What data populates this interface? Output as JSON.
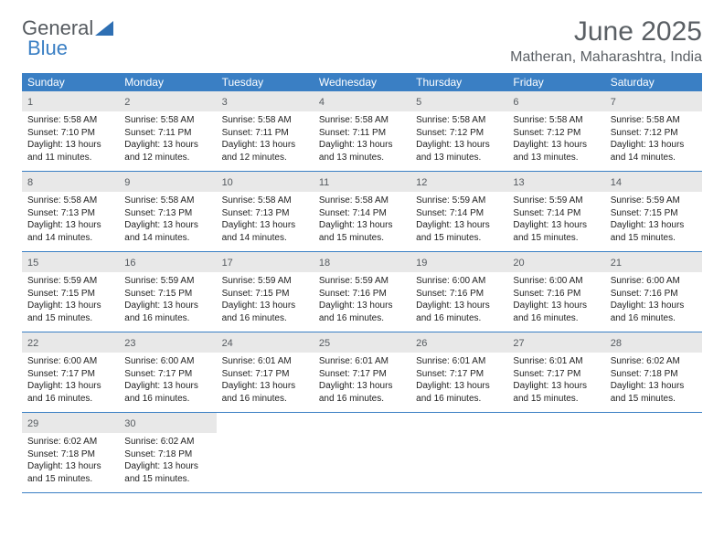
{
  "logo": {
    "part1": "General",
    "part2": "Blue"
  },
  "title": "June 2025",
  "subtitle": "Matheran, Maharashtra, India",
  "colors": {
    "header_bg": "#3a7fc4",
    "header_fg": "#ffffff",
    "daynum_bg": "#e8e8e8",
    "text": "#222222",
    "muted": "#5a5f64",
    "rule": "#3a7fc4"
  },
  "weekdays": [
    "Sunday",
    "Monday",
    "Tuesday",
    "Wednesday",
    "Thursday",
    "Friday",
    "Saturday"
  ],
  "weeks": [
    [
      {
        "n": "1",
        "sr": "Sunrise: 5:58 AM",
        "ss": "Sunset: 7:10 PM",
        "d1": "Daylight: 13 hours",
        "d2": "and 11 minutes."
      },
      {
        "n": "2",
        "sr": "Sunrise: 5:58 AM",
        "ss": "Sunset: 7:11 PM",
        "d1": "Daylight: 13 hours",
        "d2": "and 12 minutes."
      },
      {
        "n": "3",
        "sr": "Sunrise: 5:58 AM",
        "ss": "Sunset: 7:11 PM",
        "d1": "Daylight: 13 hours",
        "d2": "and 12 minutes."
      },
      {
        "n": "4",
        "sr": "Sunrise: 5:58 AM",
        "ss": "Sunset: 7:11 PM",
        "d1": "Daylight: 13 hours",
        "d2": "and 13 minutes."
      },
      {
        "n": "5",
        "sr": "Sunrise: 5:58 AM",
        "ss": "Sunset: 7:12 PM",
        "d1": "Daylight: 13 hours",
        "d2": "and 13 minutes."
      },
      {
        "n": "6",
        "sr": "Sunrise: 5:58 AM",
        "ss": "Sunset: 7:12 PM",
        "d1": "Daylight: 13 hours",
        "d2": "and 13 minutes."
      },
      {
        "n": "7",
        "sr": "Sunrise: 5:58 AM",
        "ss": "Sunset: 7:12 PM",
        "d1": "Daylight: 13 hours",
        "d2": "and 14 minutes."
      }
    ],
    [
      {
        "n": "8",
        "sr": "Sunrise: 5:58 AM",
        "ss": "Sunset: 7:13 PM",
        "d1": "Daylight: 13 hours",
        "d2": "and 14 minutes."
      },
      {
        "n": "9",
        "sr": "Sunrise: 5:58 AM",
        "ss": "Sunset: 7:13 PM",
        "d1": "Daylight: 13 hours",
        "d2": "and 14 minutes."
      },
      {
        "n": "10",
        "sr": "Sunrise: 5:58 AM",
        "ss": "Sunset: 7:13 PM",
        "d1": "Daylight: 13 hours",
        "d2": "and 14 minutes."
      },
      {
        "n": "11",
        "sr": "Sunrise: 5:58 AM",
        "ss": "Sunset: 7:14 PM",
        "d1": "Daylight: 13 hours",
        "d2": "and 15 minutes."
      },
      {
        "n": "12",
        "sr": "Sunrise: 5:59 AM",
        "ss": "Sunset: 7:14 PM",
        "d1": "Daylight: 13 hours",
        "d2": "and 15 minutes."
      },
      {
        "n": "13",
        "sr": "Sunrise: 5:59 AM",
        "ss": "Sunset: 7:14 PM",
        "d1": "Daylight: 13 hours",
        "d2": "and 15 minutes."
      },
      {
        "n": "14",
        "sr": "Sunrise: 5:59 AM",
        "ss": "Sunset: 7:15 PM",
        "d1": "Daylight: 13 hours",
        "d2": "and 15 minutes."
      }
    ],
    [
      {
        "n": "15",
        "sr": "Sunrise: 5:59 AM",
        "ss": "Sunset: 7:15 PM",
        "d1": "Daylight: 13 hours",
        "d2": "and 15 minutes."
      },
      {
        "n": "16",
        "sr": "Sunrise: 5:59 AM",
        "ss": "Sunset: 7:15 PM",
        "d1": "Daylight: 13 hours",
        "d2": "and 16 minutes."
      },
      {
        "n": "17",
        "sr": "Sunrise: 5:59 AM",
        "ss": "Sunset: 7:15 PM",
        "d1": "Daylight: 13 hours",
        "d2": "and 16 minutes."
      },
      {
        "n": "18",
        "sr": "Sunrise: 5:59 AM",
        "ss": "Sunset: 7:16 PM",
        "d1": "Daylight: 13 hours",
        "d2": "and 16 minutes."
      },
      {
        "n": "19",
        "sr": "Sunrise: 6:00 AM",
        "ss": "Sunset: 7:16 PM",
        "d1": "Daylight: 13 hours",
        "d2": "and 16 minutes."
      },
      {
        "n": "20",
        "sr": "Sunrise: 6:00 AM",
        "ss": "Sunset: 7:16 PM",
        "d1": "Daylight: 13 hours",
        "d2": "and 16 minutes."
      },
      {
        "n": "21",
        "sr": "Sunrise: 6:00 AM",
        "ss": "Sunset: 7:16 PM",
        "d1": "Daylight: 13 hours",
        "d2": "and 16 minutes."
      }
    ],
    [
      {
        "n": "22",
        "sr": "Sunrise: 6:00 AM",
        "ss": "Sunset: 7:17 PM",
        "d1": "Daylight: 13 hours",
        "d2": "and 16 minutes."
      },
      {
        "n": "23",
        "sr": "Sunrise: 6:00 AM",
        "ss": "Sunset: 7:17 PM",
        "d1": "Daylight: 13 hours",
        "d2": "and 16 minutes."
      },
      {
        "n": "24",
        "sr": "Sunrise: 6:01 AM",
        "ss": "Sunset: 7:17 PM",
        "d1": "Daylight: 13 hours",
        "d2": "and 16 minutes."
      },
      {
        "n": "25",
        "sr": "Sunrise: 6:01 AM",
        "ss": "Sunset: 7:17 PM",
        "d1": "Daylight: 13 hours",
        "d2": "and 16 minutes."
      },
      {
        "n": "26",
        "sr": "Sunrise: 6:01 AM",
        "ss": "Sunset: 7:17 PM",
        "d1": "Daylight: 13 hours",
        "d2": "and 16 minutes."
      },
      {
        "n": "27",
        "sr": "Sunrise: 6:01 AM",
        "ss": "Sunset: 7:17 PM",
        "d1": "Daylight: 13 hours",
        "d2": "and 15 minutes."
      },
      {
        "n": "28",
        "sr": "Sunrise: 6:02 AM",
        "ss": "Sunset: 7:18 PM",
        "d1": "Daylight: 13 hours",
        "d2": "and 15 minutes."
      }
    ],
    [
      {
        "n": "29",
        "sr": "Sunrise: 6:02 AM",
        "ss": "Sunset: 7:18 PM",
        "d1": "Daylight: 13 hours",
        "d2": "and 15 minutes."
      },
      {
        "n": "30",
        "sr": "Sunrise: 6:02 AM",
        "ss": "Sunset: 7:18 PM",
        "d1": "Daylight: 13 hours",
        "d2": "and 15 minutes."
      },
      {
        "empty": true
      },
      {
        "empty": true
      },
      {
        "empty": true
      },
      {
        "empty": true
      },
      {
        "empty": true
      }
    ]
  ]
}
